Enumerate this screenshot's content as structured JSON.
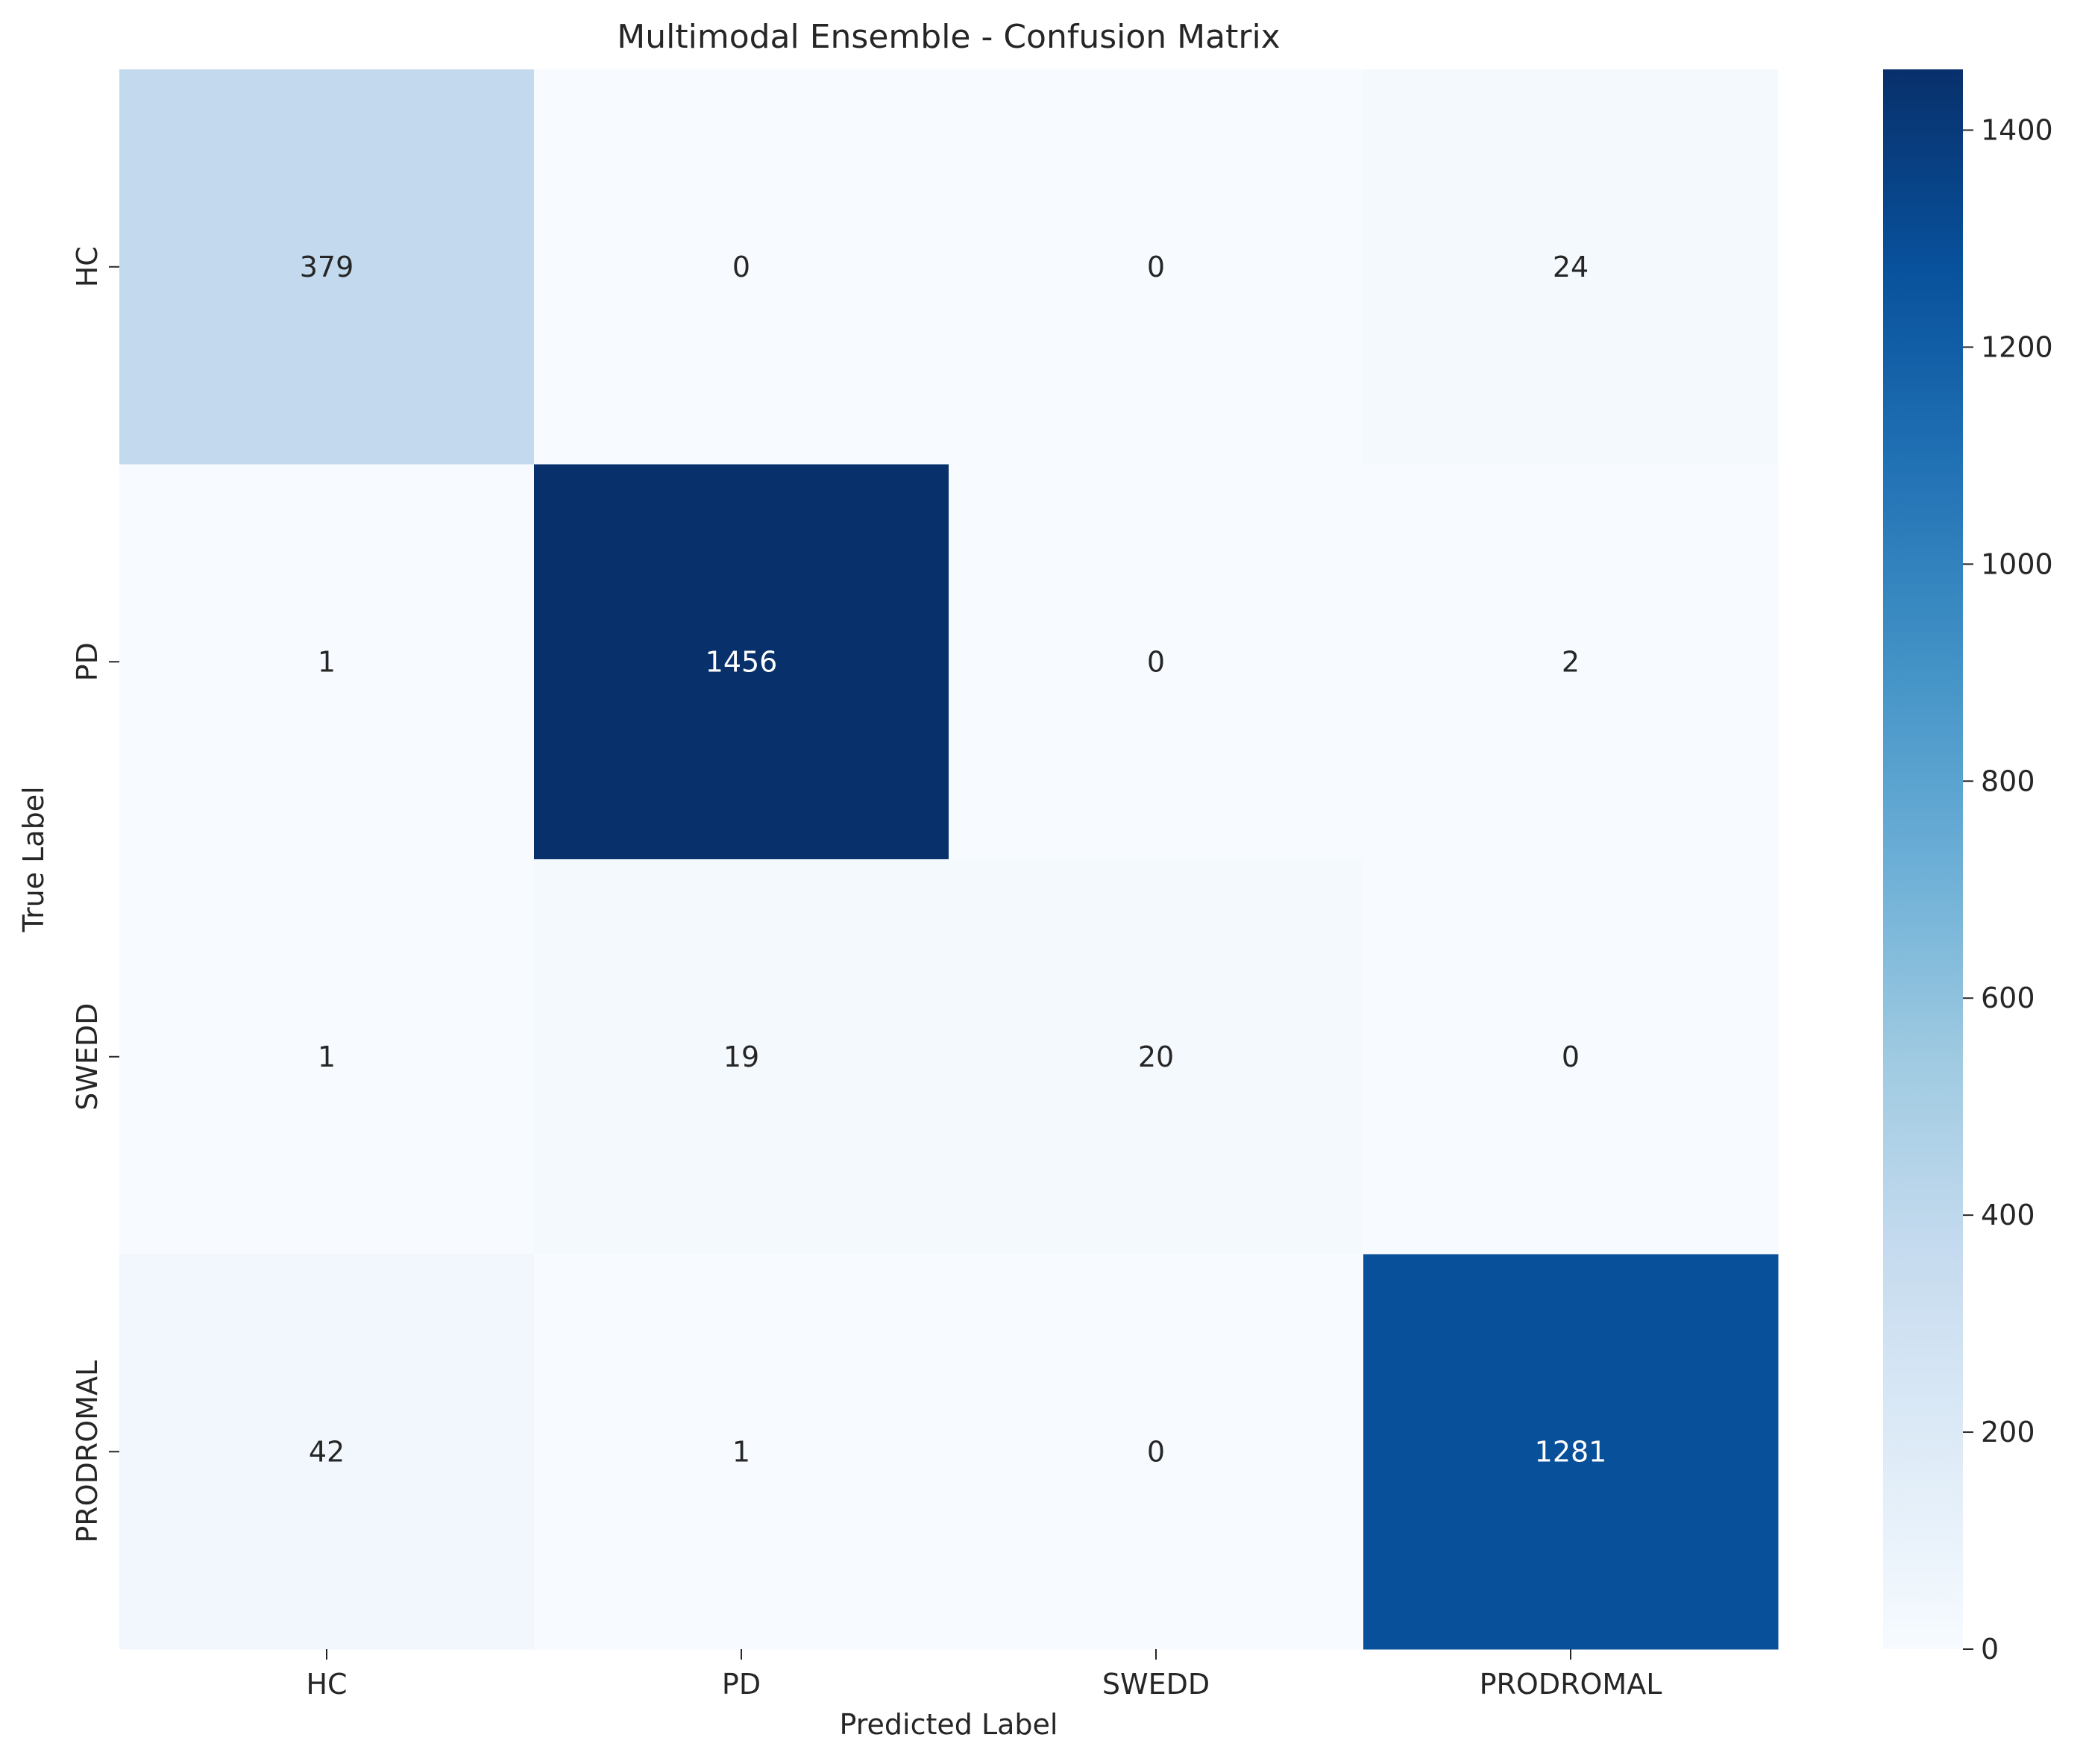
{
  "chart_data": {
    "type": "heatmap",
    "title": "Multimodal Ensemble - Confusion Matrix",
    "xlabel": "Predicted Label",
    "ylabel": "True Label",
    "x_categories": [
      "HC",
      "PD",
      "SWEDD",
      "PRODROMAL"
    ],
    "y_categories": [
      "HC",
      "PD",
      "SWEDD",
      "PRODROMAL"
    ],
    "matrix": [
      [
        379,
        0,
        0,
        24
      ],
      [
        1,
        1456,
        0,
        2
      ],
      [
        1,
        19,
        20,
        0
      ],
      [
        42,
        1,
        0,
        1281
      ]
    ],
    "colormap": "Blues",
    "colorbar": {
      "min": 0,
      "max": 1456,
      "ticks": [
        0,
        200,
        400,
        600,
        800,
        1000,
        1200,
        1400
      ]
    },
    "grid": false
  }
}
